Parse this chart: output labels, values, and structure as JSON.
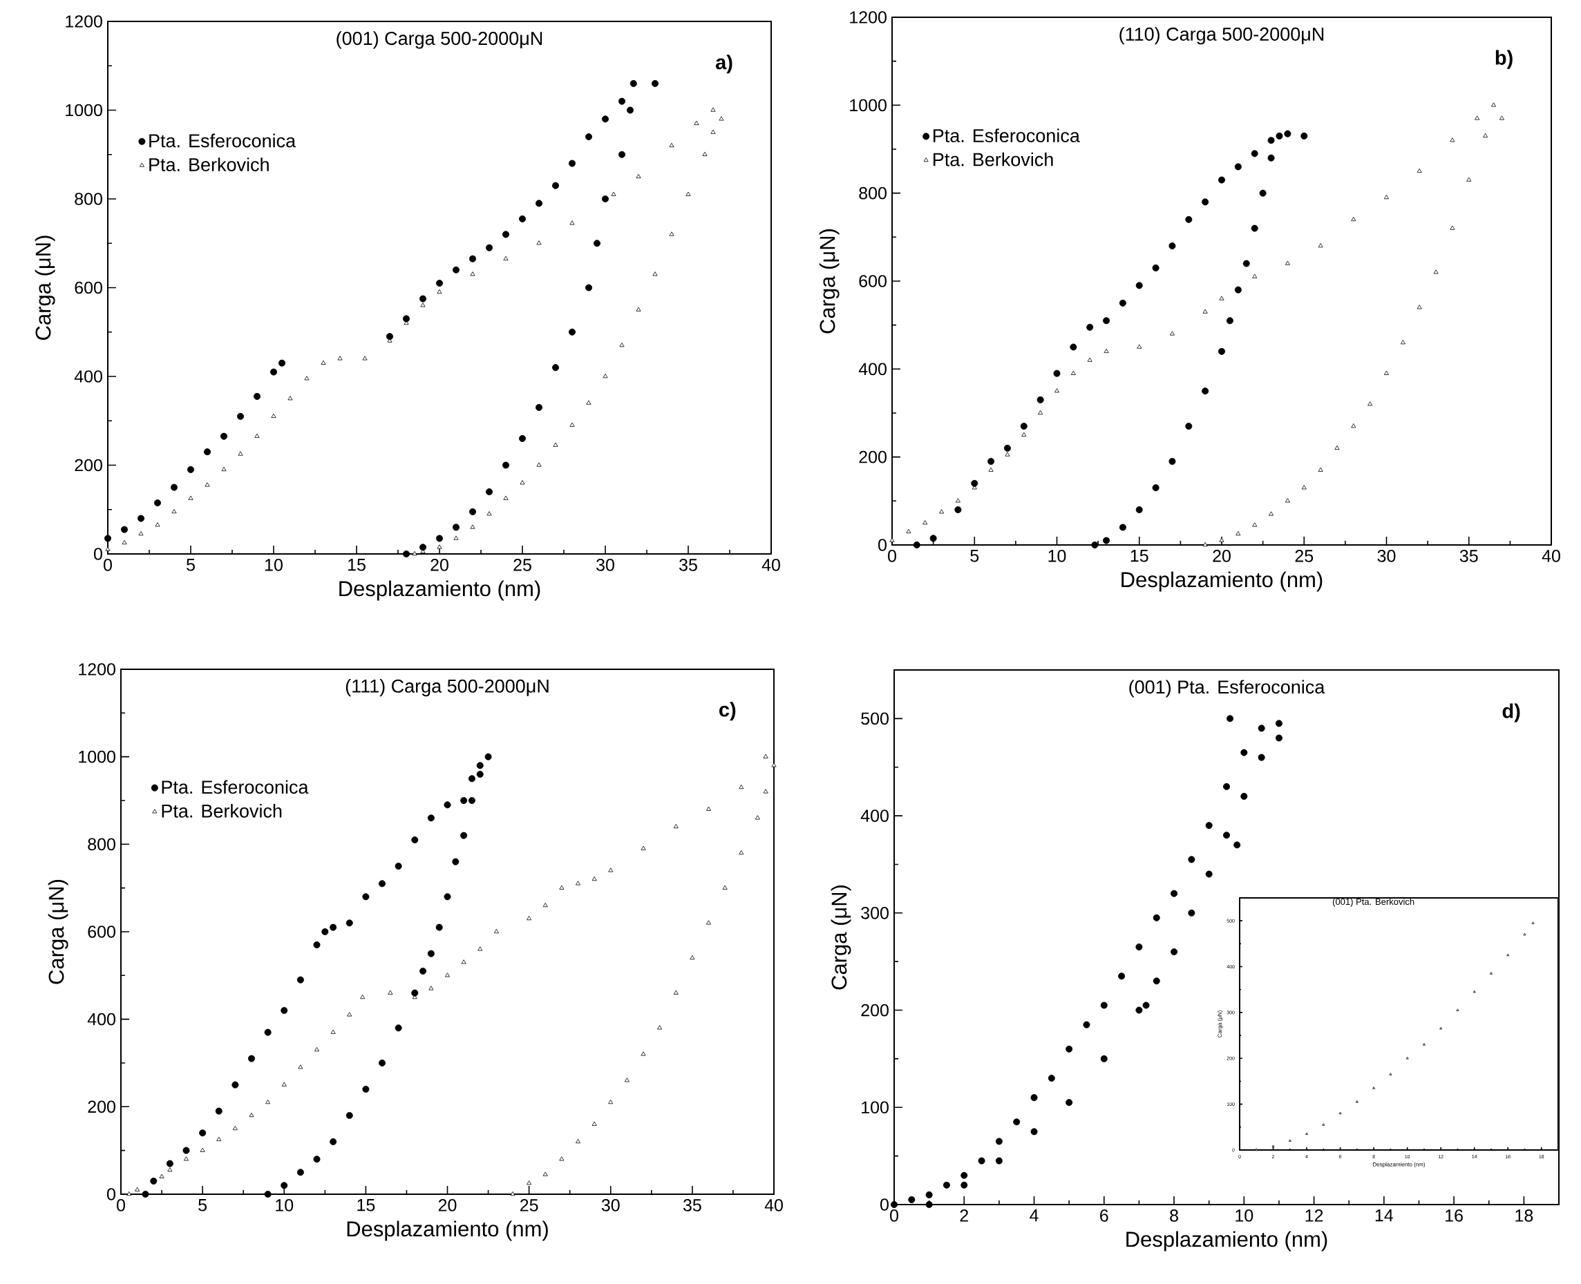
{
  "chart_data": [
    {
      "type": "scatter",
      "title": "(001) Carga 500-2000μN",
      "xlabel": "Desplazamiento (nm)",
      "ylabel": "Carga (μN)",
      "annotations": [
        "a)"
      ],
      "xlim": [
        0,
        40
      ],
      "ylim": [
        0,
        1200
      ],
      "xticks": [
        0,
        5,
        10,
        15,
        20,
        25,
        30,
        35,
        40
      ],
      "yticks": [
        0,
        200,
        400,
        600,
        800,
        1000,
        1200
      ],
      "legend": "top left",
      "series": [
        {
          "name": "Pta. Esferoconica",
          "color": "#000000",
          "marker": "circle",
          "x": [
            0,
            1,
            2,
            3,
            4,
            5,
            6,
            7,
            8,
            9,
            10,
            10.5,
            17,
            18,
            19,
            20,
            21,
            22,
            23,
            24,
            25,
            26,
            27,
            28,
            29,
            30,
            31,
            31.7,
            33,
            31.5,
            31,
            30,
            29.5,
            29,
            28,
            27,
            26,
            25,
            24,
            23,
            22,
            21,
            20,
            19,
            18
          ],
          "values": [
            35,
            55,
            80,
            115,
            150,
            190,
            230,
            265,
            310,
            355,
            410,
            430,
            490,
            530,
            575,
            610,
            640,
            665,
            690,
            720,
            755,
            790,
            830,
            880,
            940,
            980,
            1020,
            1060,
            1060,
            1000,
            900,
            800,
            700,
            600,
            500,
            420,
            330,
            260,
            200,
            140,
            95,
            60,
            35,
            15,
            0
          ]
        },
        {
          "name": "Pta. Berkovich",
          "color": "#000000",
          "marker": "triangle",
          "x": [
            0,
            1,
            2,
            3,
            4,
            5,
            6,
            7,
            8,
            9,
            10,
            11,
            12,
            13,
            14,
            15.5,
            17,
            18,
            19,
            20,
            22,
            24,
            26,
            28,
            30.5,
            32,
            34,
            35.5,
            36.5,
            37,
            36.5,
            36,
            35,
            34,
            33,
            32,
            31,
            30,
            29,
            28,
            27,
            26,
            25,
            24,
            23,
            22,
            21,
            20,
            19,
            18.5
          ],
          "values": [
            10,
            25,
            45,
            65,
            95,
            125,
            155,
            190,
            225,
            265,
            310,
            350,
            395,
            430,
            440,
            440,
            480,
            520,
            560,
            590,
            630,
            665,
            700,
            745,
            810,
            850,
            920,
            970,
            1000,
            980,
            950,
            900,
            810,
            720,
            630,
            550,
            470,
            400,
            340,
            290,
            245,
            200,
            160,
            125,
            90,
            60,
            35,
            15,
            5,
            0
          ]
        }
      ]
    },
    {
      "type": "scatter",
      "title": "(110) Carga 500-2000μN",
      "xlabel": "Desplazamiento (nm)",
      "ylabel": "Carga (μN)",
      "annotations": [
        "b)"
      ],
      "xlim": [
        0,
        40
      ],
      "ylim": [
        0,
        1200
      ],
      "xticks": [
        0,
        5,
        10,
        15,
        20,
        25,
        30,
        35,
        40
      ],
      "yticks": [
        0,
        200,
        400,
        600,
        800,
        1000,
        1200
      ],
      "legend": "top left",
      "series": [
        {
          "name": "Pta. Esferoconica",
          "color": "#000000",
          "marker": "circle",
          "x": [
            1.5,
            2.5,
            4,
            5,
            6,
            7,
            8,
            9,
            10,
            11,
            12,
            13,
            14,
            15,
            16,
            17,
            18,
            19,
            20,
            21,
            22,
            23,
            24,
            25,
            23.5,
            23,
            22.5,
            22,
            21.5,
            21,
            20.5,
            20,
            19,
            18,
            17,
            16,
            15,
            14,
            13,
            12.3
          ],
          "values": [
            0,
            15,
            80,
            140,
            190,
            220,
            270,
            330,
            390,
            450,
            495,
            510,
            550,
            590,
            630,
            680,
            740,
            780,
            830,
            860,
            890,
            920,
            935,
            930,
            930,
            880,
            800,
            720,
            640,
            580,
            510,
            440,
            350,
            270,
            190,
            130,
            80,
            40,
            10,
            0
          ]
        },
        {
          "name": "Pta. Berkovich",
          "color": "#000000",
          "marker": "triangle",
          "x": [
            0,
            1,
            2,
            3,
            4,
            5,
            6,
            7,
            8,
            9,
            10,
            11,
            12,
            13,
            15,
            17,
            19,
            20,
            22,
            24,
            26,
            28,
            30,
            32,
            34,
            35.5,
            36.5,
            37,
            36,
            35,
            34,
            33,
            32,
            31,
            30,
            29,
            28,
            27,
            26,
            25,
            24,
            23,
            22,
            21,
            20,
            19
          ],
          "values": [
            10,
            30,
            50,
            75,
            100,
            130,
            170,
            205,
            250,
            300,
            350,
            390,
            420,
            440,
            450,
            480,
            530,
            560,
            610,
            640,
            680,
            740,
            790,
            850,
            920,
            970,
            1000,
            970,
            930,
            830,
            720,
            620,
            540,
            460,
            390,
            320,
            270,
            220,
            170,
            130,
            100,
            70,
            45,
            25,
            10,
            0
          ]
        }
      ]
    },
    {
      "type": "scatter",
      "title": "(111) Carga 500-2000μN",
      "xlabel": "Desplazamiento (nm)",
      "ylabel": "Carga (μN)",
      "annotations": [
        "c)"
      ],
      "xlim": [
        0,
        40
      ],
      "ylim": [
        0,
        1200
      ],
      "xticks": [
        0,
        5,
        10,
        15,
        20,
        25,
        30,
        35,
        40
      ],
      "yticks": [
        0,
        200,
        400,
        600,
        800,
        1000,
        1200
      ],
      "legend": "top left",
      "series": [
        {
          "name": "Pta. Esferoconica",
          "color": "#000000",
          "marker": "circle",
          "x": [
            1.5,
            2,
            3,
            4,
            5,
            6,
            7,
            8,
            9,
            10,
            11,
            12,
            12.5,
            13,
            14,
            15,
            16,
            17,
            18,
            19,
            20,
            21,
            21.5,
            22,
            22.5,
            22,
            21.5,
            21,
            20.5,
            20,
            19.5,
            19,
            18.5,
            18,
            17,
            16,
            15,
            14,
            13,
            12,
            11,
            10,
            9
          ],
          "values": [
            0,
            30,
            70,
            100,
            140,
            190,
            250,
            310,
            370,
            420,
            490,
            570,
            600,
            610,
            620,
            680,
            710,
            750,
            810,
            860,
            890,
            900,
            950,
            980,
            1000,
            960,
            900,
            820,
            760,
            680,
            610,
            550,
            510,
            460,
            380,
            300,
            240,
            180,
            120,
            80,
            50,
            20,
            0
          ]
        },
        {
          "name": "Pta. Berkovich",
          "color": "#000000",
          "marker": "triangle",
          "x": [
            0.5,
            1,
            2.5,
            3,
            4,
            5,
            6,
            7,
            8,
            9,
            10,
            11,
            12,
            13,
            14,
            14.8,
            16.5,
            18,
            19,
            20,
            21,
            22,
            23,
            25,
            26,
            27,
            28,
            29,
            30,
            32,
            34,
            36,
            38,
            39.5,
            40,
            39.5,
            39,
            38,
            37,
            36,
            35,
            34,
            33,
            32,
            31,
            30,
            29,
            28,
            27,
            26,
            25,
            24
          ],
          "values": [
            0,
            10,
            40,
            55,
            80,
            100,
            125,
            150,
            180,
            210,
            250,
            290,
            330,
            370,
            410,
            450,
            460,
            450,
            470,
            500,
            530,
            560,
            600,
            630,
            660,
            700,
            710,
            720,
            740,
            790,
            840,
            880,
            930,
            1000,
            980,
            920,
            860,
            780,
            700,
            620,
            540,
            460,
            380,
            320,
            260,
            210,
            160,
            120,
            80,
            45,
            25,
            0
          ]
        }
      ]
    },
    {
      "type": "scatter",
      "title": "(001) Pta. Esferoconica",
      "xlabel": "Desplazamiento (nm)",
      "ylabel": "Carga (μN)",
      "annotations": [
        "d)"
      ],
      "xlim": [
        0,
        19
      ],
      "ylim": [
        0,
        550
      ],
      "xticks": [
        0,
        2,
        4,
        6,
        8,
        10,
        12,
        14,
        16,
        18
      ],
      "yticks": [
        0,
        100,
        200,
        300,
        400,
        500
      ],
      "series": [
        {
          "color": "#000000",
          "marker": "circle",
          "x": [
            0,
            0.5,
            1,
            1.5,
            2,
            2.5,
            3,
            3.5,
            4,
            4.5,
            5,
            5.5,
            6,
            6.5,
            7,
            7.5,
            8,
            8.5,
            9,
            9.5,
            10,
            10.5,
            11,
            9.6,
            1,
            2,
            3,
            4,
            5,
            6,
            7,
            7.5,
            8,
            8.5,
            9,
            9.5,
            10,
            10.5,
            11,
            7.2,
            9.8
          ],
          "values": [
            0,
            5,
            10,
            20,
            30,
            45,
            65,
            85,
            110,
            130,
            160,
            185,
            205,
            235,
            265,
            295,
            320,
            355,
            390,
            430,
            465,
            490,
            495,
            500,
            0,
            20,
            45,
            75,
            105,
            150,
            200,
            230,
            260,
            300,
            340,
            380,
            420,
            460,
            480,
            205,
            370
          ]
        }
      ]
    },
    {
      "type": "scatter",
      "title": "(001) Pta. Berkovich",
      "xlabel": "Desplazamiento (nm)",
      "ylabel": "Carga (μN)",
      "xlim": [
        0,
        19
      ],
      "ylim": [
        0,
        550
      ],
      "xticks": [
        0,
        2,
        4,
        6,
        8,
        10,
        12,
        14,
        16,
        18
      ],
      "yticks": [
        0,
        100,
        200,
        300,
        400,
        500
      ],
      "series": [
        {
          "color": "#000000",
          "marker": "triangle",
          "x": [
            1,
            2,
            3,
            4,
            5,
            6,
            7,
            8,
            9,
            10,
            11,
            12,
            13,
            14,
            15,
            16,
            17,
            17.5
          ],
          "values": [
            0,
            8,
            20,
            35,
            55,
            80,
            105,
            135,
            165,
            200,
            230,
            265,
            305,
            345,
            385,
            425,
            470,
            495
          ]
        }
      ]
    }
  ]
}
